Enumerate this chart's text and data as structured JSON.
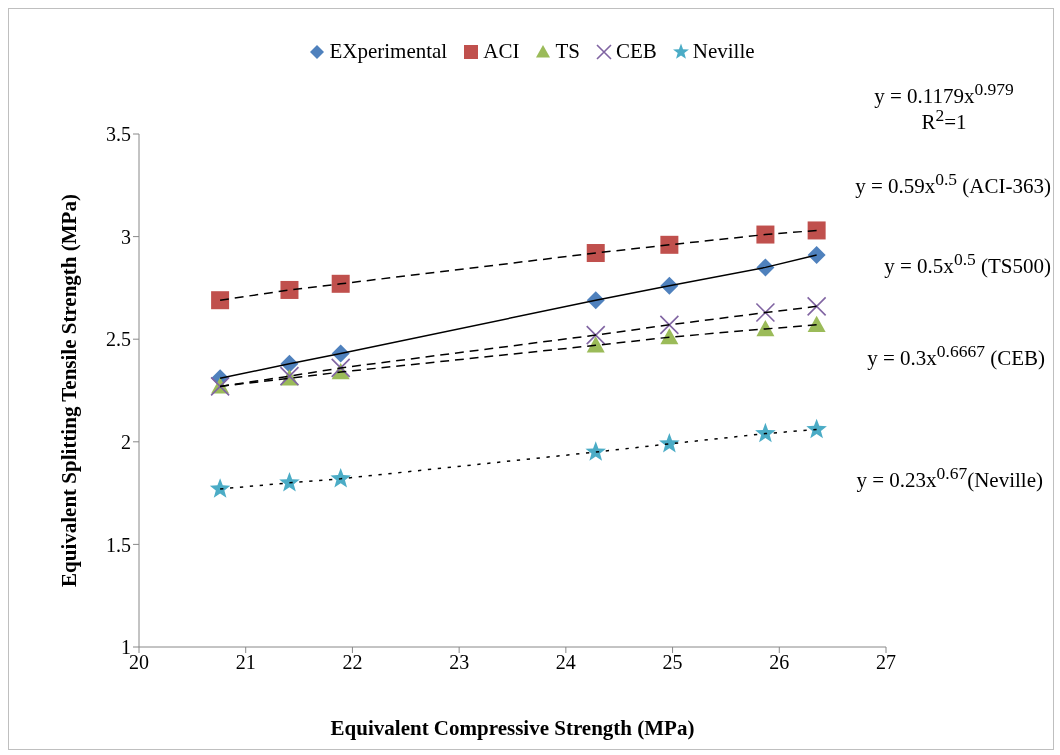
{
  "chart_data": {
    "type": "scatter",
    "xlabel": "Equivalent Compressive Strength (MPa)",
    "ylabel": "Equivalent Splitting Tensile Strength (MPa)",
    "xlim": [
      20,
      27
    ],
    "xticks": [
      20,
      21,
      22,
      23,
      24,
      25,
      26,
      27
    ],
    "ylim": [
      1,
      3.5
    ],
    "yticks": [
      1,
      1.5,
      2,
      2.5,
      3,
      3.5
    ],
    "grid": false,
    "legend": "top",
    "x": [
      20.76,
      21.41,
      21.89,
      24.28,
      24.97,
      25.87,
      26.35
    ],
    "series": [
      {
        "name": "EXperimental",
        "color": "#4f81bd",
        "marker": "diamond",
        "values": [
          2.31,
          2.38,
          2.43,
          2.69,
          2.76,
          2.85,
          2.91
        ]
      },
      {
        "name": "ACI",
        "color": "#c0504d",
        "marker": "square",
        "values": [
          2.69,
          2.74,
          2.77,
          2.92,
          2.96,
          3.01,
          3.03
        ]
      },
      {
        "name": "TS",
        "color": "#9bbb59",
        "marker": "triangle",
        "values": [
          2.27,
          2.31,
          2.34,
          2.47,
          2.51,
          2.55,
          2.57
        ]
      },
      {
        "name": "CEB",
        "color": "#8064a2",
        "marker": "cross",
        "values": [
          2.27,
          2.32,
          2.36,
          2.52,
          2.57,
          2.63,
          2.66
        ]
      },
      {
        "name": "Neville",
        "color": "#4bacc6",
        "marker": "star",
        "values": [
          1.77,
          1.8,
          1.82,
          1.95,
          1.99,
          2.04,
          2.06
        ]
      },
      {
        "type": "line",
        "color": "#000000",
        "line_style": "solid",
        "marker": "none",
        "x": [
          20.76,
          21.41,
          21.89,
          24.28,
          24.97,
          25.87,
          26.35
        ],
        "values": [
          2.31,
          2.38,
          2.43,
          2.69,
          2.76,
          2.85,
          2.91
        ]
      },
      {
        "type": "line",
        "color": "#000000",
        "line_style": "dashed",
        "marker": "none",
        "x": [
          20.76,
          21.41,
          21.89,
          24.28,
          24.97,
          25.87,
          26.35
        ],
        "values": [
          2.69,
          2.74,
          2.77,
          2.92,
          2.96,
          3.01,
          3.03
        ]
      },
      {
        "type": "line",
        "color": "#000000",
        "line_style": "dashed",
        "marker": "none",
        "x": [
          20.76,
          21.41,
          21.89,
          24.28,
          24.97,
          25.87,
          26.35
        ],
        "values": [
          2.27,
          2.31,
          2.34,
          2.47,
          2.51,
          2.55,
          2.57
        ]
      },
      {
        "type": "line",
        "color": "#000000",
        "line_style": "dashed",
        "marker": "none",
        "x": [
          20.76,
          21.41,
          21.89,
          24.28,
          24.97,
          25.87,
          26.35
        ],
        "values": [
          2.27,
          2.32,
          2.36,
          2.52,
          2.57,
          2.63,
          2.66
        ]
      },
      {
        "type": "line",
        "color": "#000000",
        "line_style": "dotted",
        "marker": "none",
        "x": [
          20.76,
          21.41,
          21.89,
          24.28,
          24.97,
          25.87,
          26.35
        ],
        "values": [
          1.77,
          1.8,
          1.82,
          1.95,
          1.99,
          2.04,
          2.06
        ]
      }
    ],
    "annotations": [
      "y = 0.1179x$^{0.979}$",
      "R$^{2}$=1",
      "y = 0.59x$^{0.5}$ (ACI-363)",
      "y = 0.5x$^{0.5}$ (TS500)",
      "y = 0.3x$^{0.6667}$ (CEB)",
      "y = 0.23x$^{0.67}$(Neville)"
    ]
  }
}
